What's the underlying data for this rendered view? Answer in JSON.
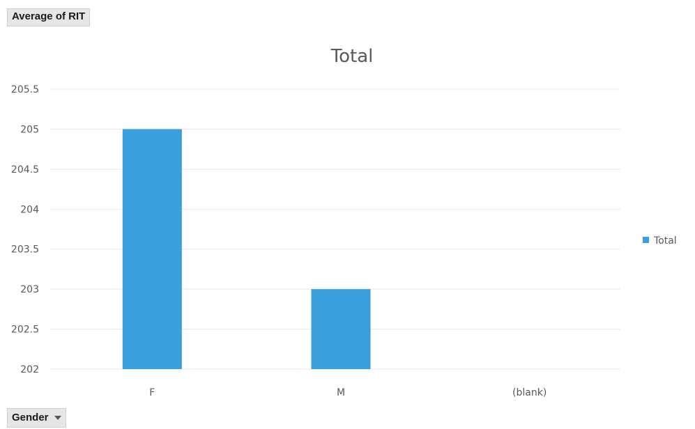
{
  "pivot_buttons": {
    "value_field": "Average of RIT",
    "axis_field": "Gender"
  },
  "colors": {
    "bar": "#3a9fdd",
    "gridline": "#e8e8e8",
    "text": "#595959"
  },
  "chart_data": {
    "type": "bar",
    "title": "Total",
    "xlabel": "",
    "ylabel": "",
    "categories": [
      "F",
      "M",
      "(blank)"
    ],
    "series": [
      {
        "name": "Total",
        "values": [
          205,
          203,
          null
        ]
      }
    ],
    "ylim": [
      202,
      205.5
    ],
    "yticks": [
      202,
      202.5,
      203,
      203.5,
      204,
      204.5,
      205,
      205.5
    ],
    "ytick_labels": [
      "202",
      "202.5",
      "203",
      "203.5",
      "204",
      "204.5",
      "205",
      "205.5"
    ],
    "grid": true,
    "legend_position": "right"
  }
}
